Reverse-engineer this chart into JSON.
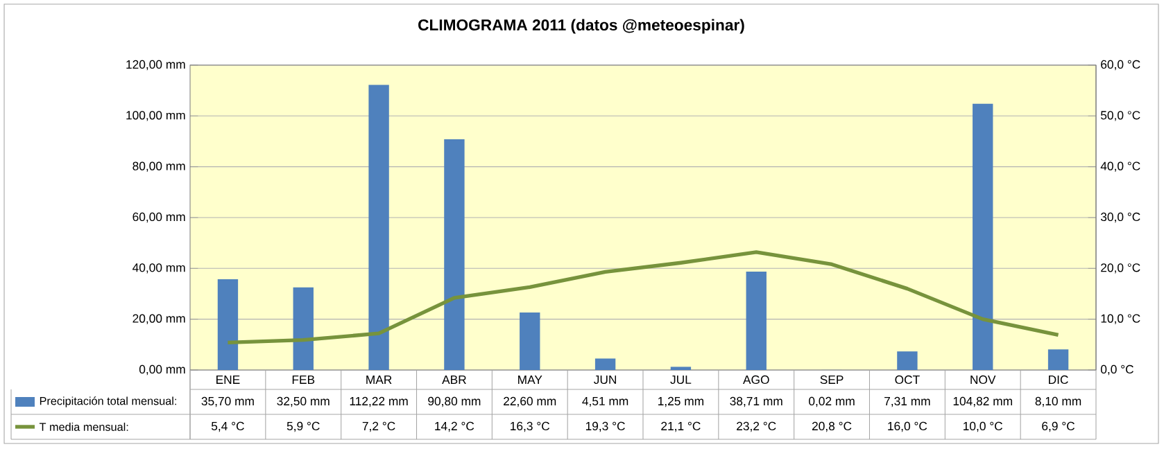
{
  "chart_data": {
    "type": "bar",
    "title": "CLIMOGRAMA 2011 (datos @meteoespinar)",
    "categories": [
      "ENE",
      "FEB",
      "MAR",
      "ABR",
      "MAY",
      "JUN",
      "JUL",
      "AGO",
      "SEP",
      "OCT",
      "NOV",
      "DIC"
    ],
    "series": [
      {
        "name": "Precipitación total mensual:",
        "color": "#4f81bd",
        "values": [
          35.7,
          32.5,
          112.22,
          90.8,
          22.6,
          4.51,
          1.25,
          38.71,
          0.02,
          7.31,
          104.82,
          8.1
        ],
        "value_labels": [
          "35,70 mm",
          "32,50 mm",
          "112,22 mm",
          "90,80 mm",
          "22,60 mm",
          "4,51 mm",
          "1,25 mm",
          "38,71 mm",
          "0,02 mm",
          "7,31 mm",
          "104,82 mm",
          "8,10 mm"
        ]
      },
      {
        "name": "T media mensual:",
        "type": "line",
        "axis": "y2",
        "color": "#77933c",
        "values": [
          5.4,
          5.9,
          7.2,
          14.2,
          16.3,
          19.3,
          21.1,
          23.2,
          20.8,
          16.0,
          10.0,
          6.9
        ],
        "value_labels": [
          "5,4 °C",
          "5,9 °C",
          "7,2 °C",
          "14,2 °C",
          "16,3 °C",
          "19,3 °C",
          "21,1 °C",
          "23,2 °C",
          "20,8 °C",
          "16,0 °C",
          "10,0 °C",
          "6,9 °C"
        ]
      }
    ],
    "ylim": [
      0,
      120
    ],
    "yticks": [
      {
        "value": 0,
        "label": "0,00 mm"
      },
      {
        "value": 20,
        "label": "20,00 mm"
      },
      {
        "value": 40,
        "label": "40,00 mm"
      },
      {
        "value": 60,
        "label": "60,00 mm"
      },
      {
        "value": 80,
        "label": "80,00 mm"
      },
      {
        "value": 100,
        "label": "100,00 mm"
      },
      {
        "value": 120,
        "label": "120,00 mm"
      }
    ],
    "y2lim": [
      0,
      60
    ],
    "y2ticks": [
      {
        "value": 0,
        "label": "0,0 °C"
      },
      {
        "value": 10,
        "label": "10,0 °C"
      },
      {
        "value": 20,
        "label": "20,0 °C"
      },
      {
        "value": 30,
        "label": "30,0 °C"
      },
      {
        "value": 40,
        "label": "40,0 °C"
      },
      {
        "value": 50,
        "label": "50,0 °C"
      },
      {
        "value": 60,
        "label": "60,0 °C"
      }
    ],
    "grid": "y",
    "legend": "bottom"
  }
}
